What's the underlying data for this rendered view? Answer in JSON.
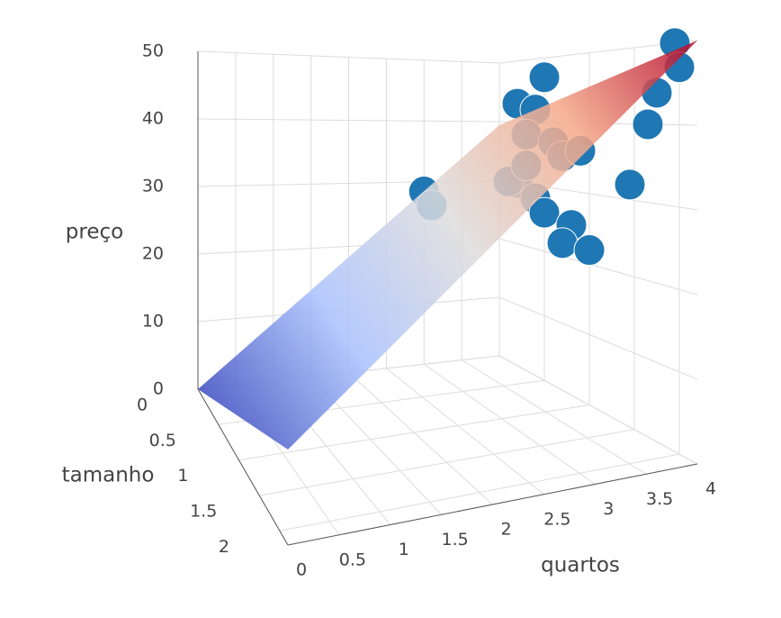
{
  "chart_data": {
    "type": "scatter3d",
    "xlabel": "quartos",
    "ylabel": "tamanho",
    "zlabel": "preço",
    "xlim": [
      0,
      4
    ],
    "ylim": [
      0,
      2.2
    ],
    "zlim": [
      0,
      50
    ],
    "xticks": [
      0,
      0.5,
      1,
      1.5,
      2,
      2.5,
      3,
      3.5,
      4
    ],
    "yticks": [
      0,
      0.5,
      1,
      1.5,
      2
    ],
    "zticks": [
      0,
      10,
      20,
      30,
      40,
      50
    ],
    "grid": true,
    "points": {
      "color": "#1f77b4",
      "x": [
        3,
        3,
        4,
        4,
        4,
        4,
        4,
        4,
        4,
        4,
        4,
        4,
        4,
        4,
        4,
        4,
        4,
        4,
        4,
        4,
        4,
        4
      ],
      "y": [
        0,
        0.1,
        0.2,
        0.5,
        0.4,
        0.3,
        0.6,
        0.7,
        0.2,
        0.1,
        0.4,
        0.5,
        0.8,
        0.7,
        1.0,
        0.3,
        0.9,
        1.45,
        1.65,
        1.75,
        1.95,
        2.0
      ],
      "z": [
        28.4,
        26.5,
        43,
        47,
        42,
        38,
        37,
        35,
        30,
        30,
        28,
        26,
        25,
        22,
        22,
        33,
        36,
        32,
        40,
        44,
        50,
        47
      ]
    },
    "surface": {
      "x": [
        0,
        4
      ],
      "y": [
        0,
        2.2
      ],
      "z": [
        [
          0,
          39.4
        ],
        [
          10.6,
          50
        ]
      ],
      "colorscale": [
        "#3b4cc0",
        "#a9c1fd",
        "#dddcdc",
        "#f5a989",
        "#b40426"
      ],
      "opacity": 0.85
    }
  }
}
